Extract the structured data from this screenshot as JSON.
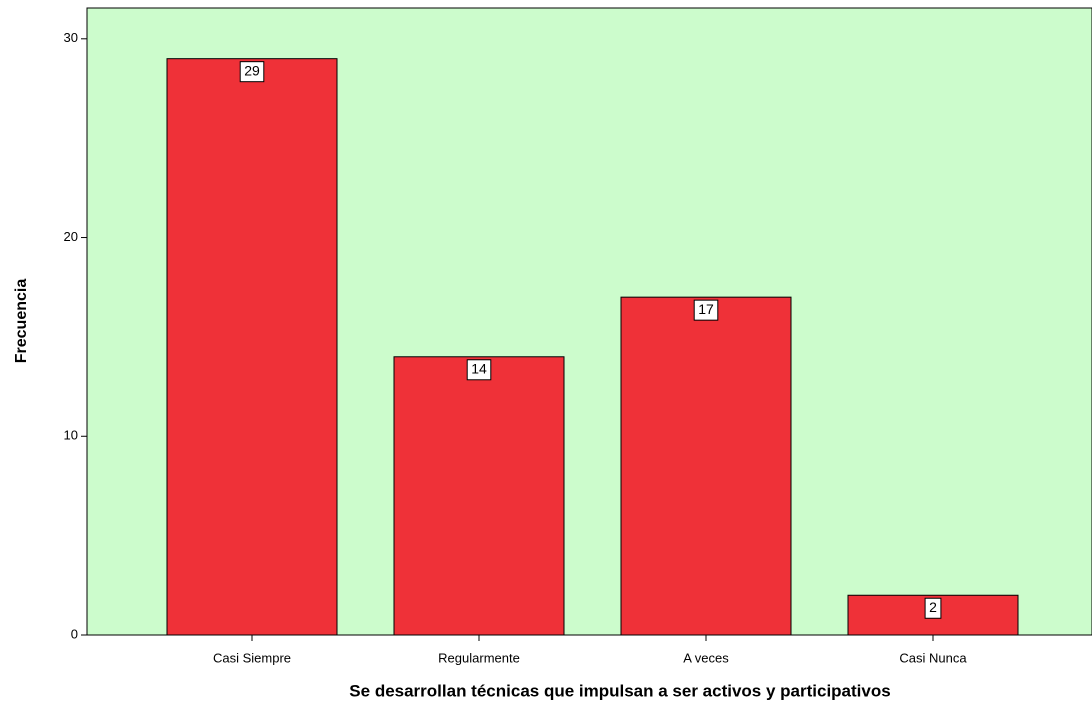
{
  "chart_data": {
    "type": "bar",
    "categories": [
      "Casi Siempre",
      "Regularmente",
      "A veces",
      "Casi Nunca"
    ],
    "values": [
      29,
      14,
      17,
      2
    ],
    "color": "#ef3138",
    "background": "#ccfccc",
    "ylim": [
      0,
      31.55
    ],
    "yticks": [
      0,
      10,
      20,
      30
    ],
    "xlabel": "Se desarrollan técnicas que impulsan a ser activos y participativos",
    "ylabel": "Frecuencia",
    "data_labels": true
  }
}
